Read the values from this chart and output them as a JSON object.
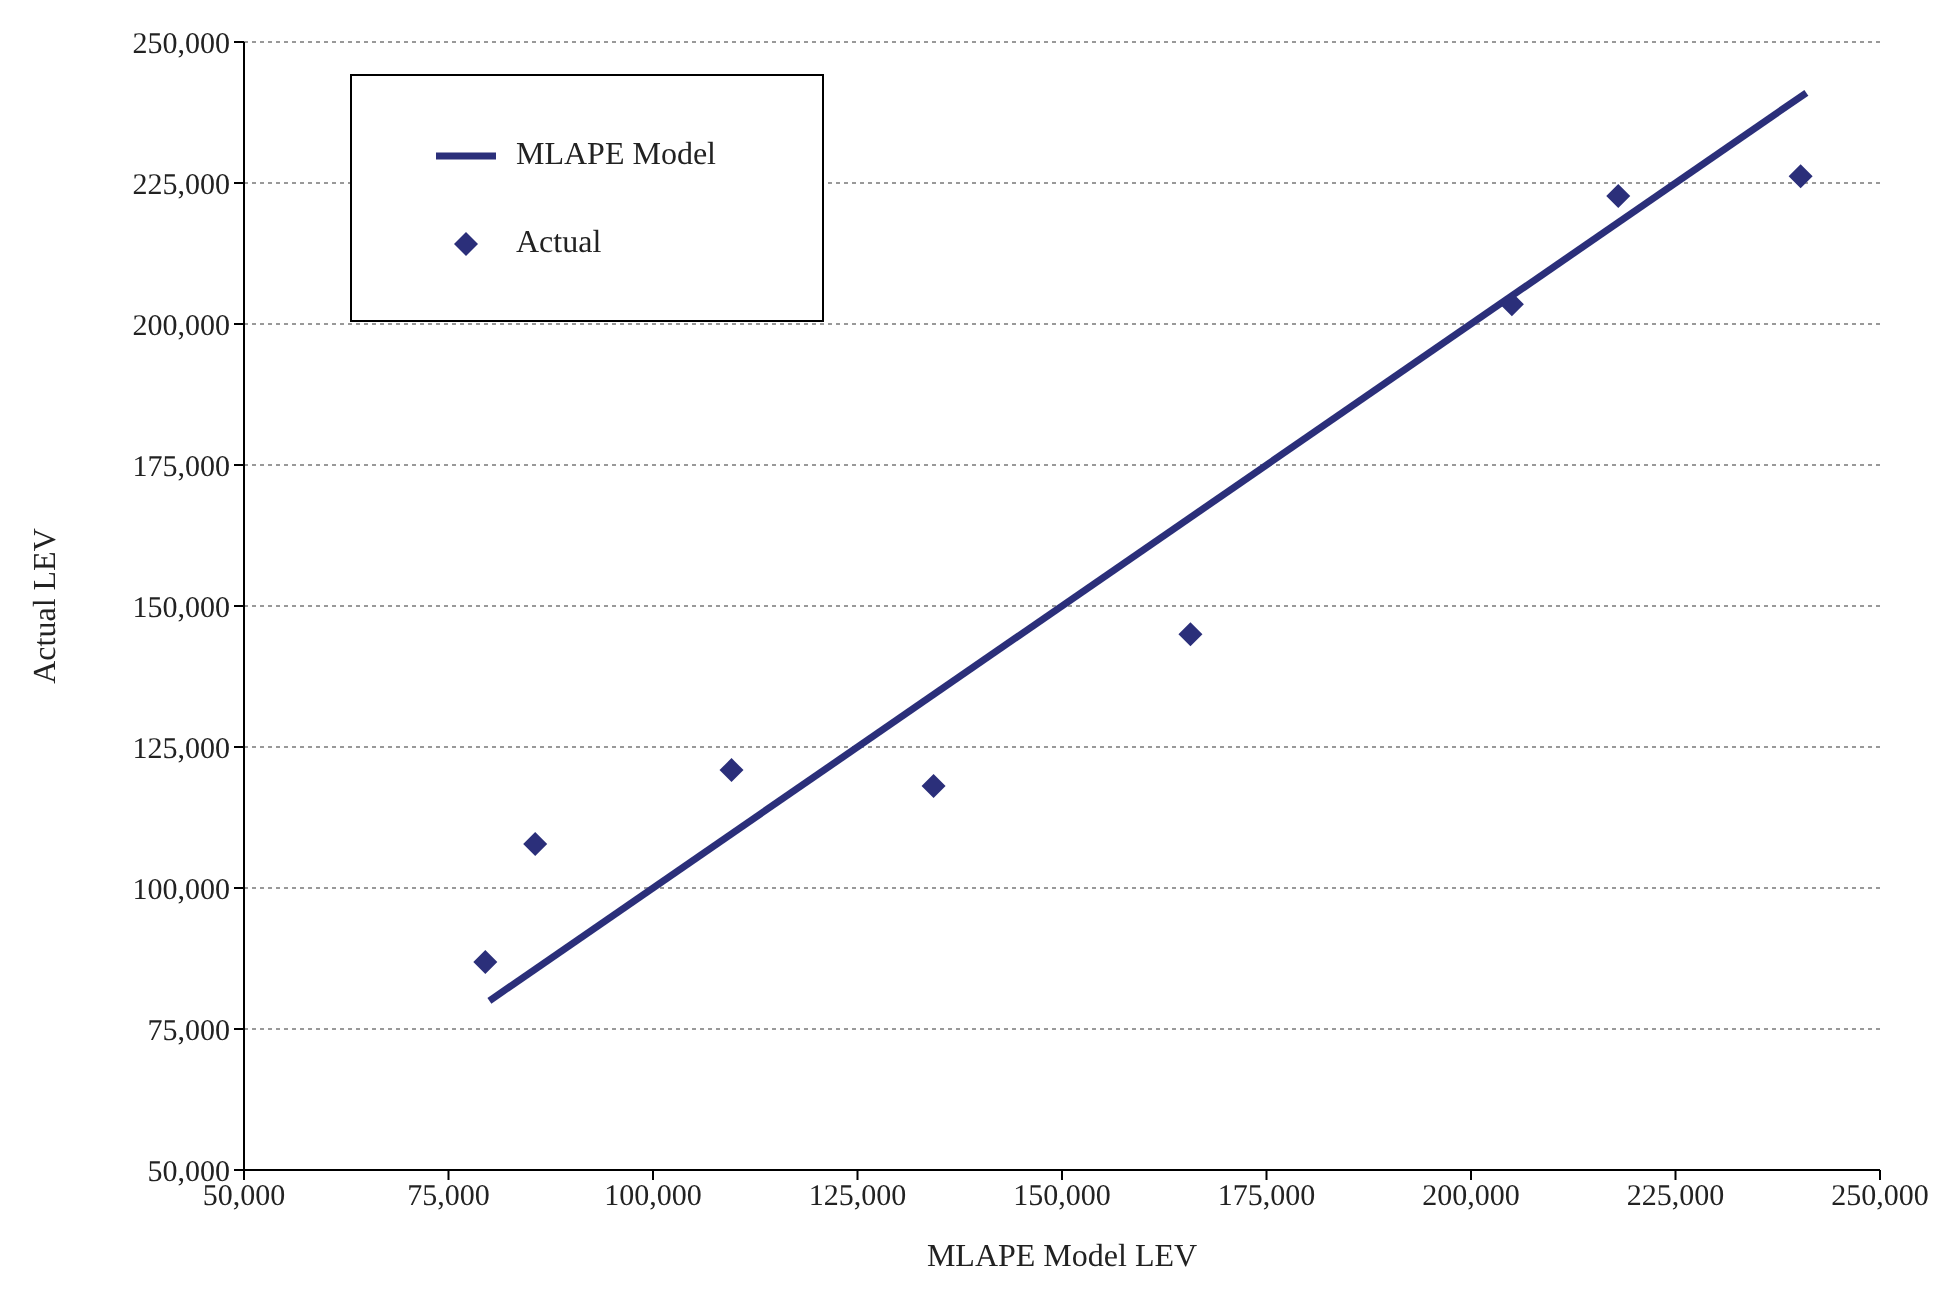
{
  "chart_data": {
    "type": "scatter",
    "xlabel": "MLAPE Model LEV",
    "ylabel": "Actual LEV",
    "xlim": [
      50000,
      250000
    ],
    "xticks": [
      {
        "value": 50000,
        "label": "50,000"
      },
      {
        "value": 75000,
        "label": "75,000"
      },
      {
        "value": 100000,
        "label": "100,000"
      },
      {
        "value": 125000,
        "label": "125,000"
      },
      {
        "value": 150000,
        "label": "150,000"
      },
      {
        "value": 175000,
        "label": "175,000"
      },
      {
        "value": 200000,
        "label": "200,000"
      },
      {
        "value": 225000,
        "label": "225,000"
      },
      {
        "value": 250000,
        "label": "250,000"
      }
    ],
    "ylim": [
      50000,
      250000
    ],
    "yticks": [
      {
        "value": 50000,
        "label": "50,000"
      },
      {
        "value": 75000,
        "label": "75,000"
      },
      {
        "value": 100000,
        "label": "100,000"
      },
      {
        "value": 125000,
        "label": "125,000"
      },
      {
        "value": 150000,
        "label": "150,000"
      },
      {
        "value": 175000,
        "label": "175,000"
      },
      {
        "value": 200000,
        "label": "200,000"
      },
      {
        "value": 225000,
        "label": "225,000"
      },
      {
        "value": 250000,
        "label": "250,000"
      }
    ],
    "grid": "y",
    "legend": "top left",
    "series": [
      {
        "name": "MLAPE Model",
        "type": "line",
        "color": "#2b2f7a",
        "line_style": "solid",
        "x": [
          80000,
          241000
        ],
        "values": [
          80000,
          241000
        ]
      },
      {
        "name": "Actual",
        "color": "#2b2f7a",
        "marker": "diamond",
        "x": [
          79500,
          85600,
          109600,
          134300,
          165700,
          205000,
          218000,
          240300
        ],
        "values": [
          86900,
          107800,
          120900,
          118100,
          145000,
          203500,
          222700,
          226200
        ]
      }
    ]
  }
}
